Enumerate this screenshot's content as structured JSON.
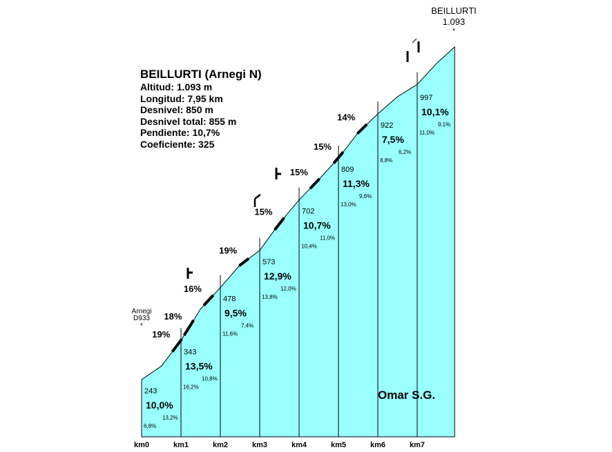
{
  "peak": {
    "name": "BEILLURTI",
    "altitude": "1.093",
    "marker": "*"
  },
  "start_point": {
    "name": "Arnegi",
    "road": "D933",
    "marker": "*"
  },
  "info": {
    "title": "BEILLURTI (Arnegi N)",
    "lines": [
      "Altitud:  1.093 m",
      "Longitud:  7,95 km",
      "Desnivel:  850 m",
      "Desnivel total:  855 m",
      "Pendiente:  10,7%",
      "Coeficiente:  325"
    ]
  },
  "author": "Omar S.G.",
  "colors": {
    "profile_fill": "#99ffff",
    "line": "#000000",
    "background": "#ffffff"
  },
  "chart_data": {
    "type": "area",
    "title": "BEILLURTI (Arnegi N)",
    "x_unit": "km",
    "x_ticks": [
      "km0",
      "km1",
      "km2",
      "km3",
      "km4",
      "km5",
      "km6",
      "km7"
    ],
    "xlim": [
      0,
      7.95
    ],
    "ylim": [
      243,
      1093
    ],
    "km_segments": [
      {
        "km": "km0",
        "start_altitude": 243,
        "gradient": "10,0%",
        "sub_gradients": [
          "6,8%",
          "13,2%"
        ]
      },
      {
        "km": "km1",
        "start_altitude": 343,
        "gradient": "13,5%",
        "sub_gradients": [
          "16,2%",
          "10,8%"
        ]
      },
      {
        "km": "km2",
        "start_altitude": 478,
        "gradient": "9,5%",
        "sub_gradients": [
          "11,6%",
          "7,4%"
        ]
      },
      {
        "km": "km3",
        "start_altitude": 573,
        "gradient": "12,9%",
        "sub_gradients": [
          "13,8%",
          "12,0%"
        ]
      },
      {
        "km": "km4",
        "start_altitude": 702,
        "gradient": "10,7%",
        "sub_gradients": [
          "10,4%",
          "11,0%"
        ]
      },
      {
        "km": "km5",
        "start_altitude": 809,
        "gradient": "11,3%",
        "sub_gradients": [
          "13,0%",
          "9,6%"
        ]
      },
      {
        "km": "km6",
        "start_altitude": 922,
        "gradient": "7,5%",
        "sub_gradients": [
          "8,8%",
          "6,2%"
        ]
      },
      {
        "km": "km7",
        "start_altitude": 997,
        "gradient": "10,1%",
        "sub_gradients": [
          "11,0%",
          "9,1%"
        ]
      }
    ],
    "end": {
      "km": 7.95,
      "altitude": 1093
    },
    "steep_sections": [
      {
        "km": 0.9,
        "label": "19%"
      },
      {
        "km": 1.2,
        "label": "18%"
      },
      {
        "km": 1.7,
        "label": "16%"
      },
      {
        "km": 2.6,
        "label": "19%"
      },
      {
        "km": 3.5,
        "label": "15%"
      },
      {
        "km": 4.4,
        "label": "15%"
      },
      {
        "km": 5.0,
        "label": "15%"
      },
      {
        "km": 5.6,
        "label": "14%"
      }
    ]
  }
}
